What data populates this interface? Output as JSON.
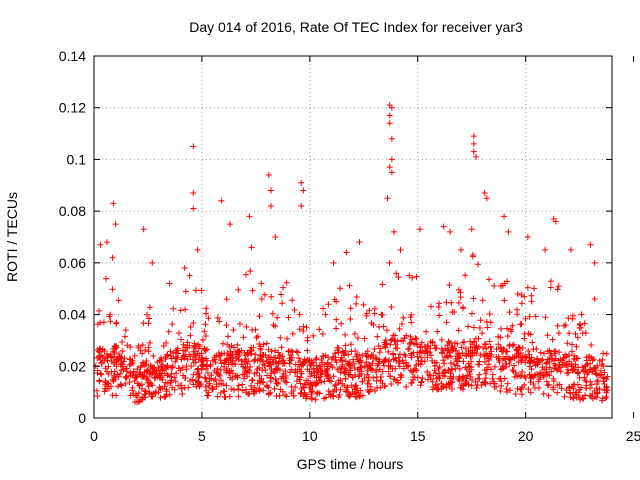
{
  "chart_data": {
    "type": "scatter",
    "title": "Day 014 of 2016, Rate Of TEC Index for receiver yar3",
    "xlabel": "GPS time / hours",
    "ylabel": "ROTI / TECUs",
    "xlim": [
      0,
      24
    ],
    "ylim": [
      0,
      0.14
    ],
    "x_ticks": [
      0,
      5,
      10,
      15,
      20,
      25
    ],
    "x_tick_labels": [
      "0",
      "5",
      "10",
      "15",
      "20",
      "25"
    ],
    "y_ticks": [
      0,
      0.02,
      0.04,
      0.06,
      0.08,
      0.1,
      0.12,
      0.14
    ],
    "y_tick_labels": [
      "0",
      "0.02",
      "0.04",
      "0.06",
      "0.08",
      "0.1",
      "0.12",
      "0.14"
    ],
    "grid": true,
    "marker": "+",
    "series": [
      {
        "name": "ROTI",
        "color": "#ff0000",
        "points": [
          [
            0.3,
            0.067
          ],
          [
            0.6,
            0.068
          ],
          [
            0.9,
            0.083
          ],
          [
            1.0,
            0.075
          ],
          [
            2.3,
            0.073
          ],
          [
            2.7,
            0.06
          ],
          [
            3.5,
            0.052
          ],
          [
            4.2,
            0.058
          ],
          [
            4.6,
            0.105
          ],
          [
            4.6,
            0.087
          ],
          [
            4.6,
            0.081
          ],
          [
            4.8,
            0.065
          ],
          [
            5.9,
            0.084
          ],
          [
            6.3,
            0.075
          ],
          [
            7.2,
            0.078
          ],
          [
            7.3,
            0.066
          ],
          [
            8.1,
            0.094
          ],
          [
            8.2,
            0.088
          ],
          [
            8.2,
            0.082
          ],
          [
            8.4,
            0.07
          ],
          [
            9.6,
            0.091
          ],
          [
            9.7,
            0.088
          ],
          [
            9.6,
            0.082
          ],
          [
            11.1,
            0.06
          ],
          [
            11.7,
            0.064
          ],
          [
            12.3,
            0.068
          ],
          [
            13.7,
            0.121
          ],
          [
            13.8,
            0.12
          ],
          [
            13.7,
            0.117
          ],
          [
            13.7,
            0.114
          ],
          [
            13.8,
            0.108
          ],
          [
            13.8,
            0.1
          ],
          [
            13.7,
            0.097
          ],
          [
            13.8,
            0.095
          ],
          [
            13.6,
            0.085
          ],
          [
            13.9,
            0.072
          ],
          [
            14.2,
            0.065
          ],
          [
            15.1,
            0.073
          ],
          [
            16.2,
            0.074
          ],
          [
            16.5,
            0.072
          ],
          [
            17.0,
            0.065
          ],
          [
            17.5,
            0.073
          ],
          [
            17.6,
            0.109
          ],
          [
            17.6,
            0.106
          ],
          [
            17.6,
            0.103
          ],
          [
            17.7,
            0.101
          ],
          [
            18.1,
            0.087
          ],
          [
            18.2,
            0.085
          ],
          [
            19.0,
            0.078
          ],
          [
            19.2,
            0.072
          ],
          [
            20.1,
            0.07
          ],
          [
            20.9,
            0.065
          ],
          [
            21.3,
            0.077
          ],
          [
            21.4,
            0.076
          ],
          [
            22.1,
            0.065
          ],
          [
            23.0,
            0.067
          ],
          [
            23.2,
            0.06
          ],
          [
            23.2,
            0.046
          ]
        ]
      }
    ],
    "dense_band": [
      [
        0,
        0.011,
        0.02,
        0.05
      ],
      [
        0.5,
        0.012,
        0.022,
        0.058
      ],
      [
        1.0,
        0.012,
        0.023,
        0.065
      ],
      [
        1.5,
        0.011,
        0.018,
        0.04
      ],
      [
        2.0,
        0.01,
        0.015,
        0.03
      ],
      [
        2.5,
        0.011,
        0.017,
        0.046
      ],
      [
        3.0,
        0.011,
        0.016,
        0.035
      ],
      [
        3.5,
        0.012,
        0.02,
        0.047
      ],
      [
        4.0,
        0.013,
        0.022,
        0.05
      ],
      [
        4.5,
        0.014,
        0.024,
        0.062
      ],
      [
        5.0,
        0.013,
        0.022,
        0.05
      ],
      [
        5.5,
        0.012,
        0.02,
        0.045
      ],
      [
        6.0,
        0.012,
        0.021,
        0.058
      ],
      [
        6.5,
        0.012,
        0.02,
        0.05
      ],
      [
        7.0,
        0.012,
        0.021,
        0.055
      ],
      [
        7.5,
        0.013,
        0.023,
        0.062
      ],
      [
        8.0,
        0.013,
        0.022,
        0.06
      ],
      [
        8.5,
        0.012,
        0.02,
        0.05
      ],
      [
        9.0,
        0.012,
        0.021,
        0.055
      ],
      [
        9.5,
        0.012,
        0.02,
        0.048
      ],
      [
        10.0,
        0.011,
        0.017,
        0.04
      ],
      [
        10.5,
        0.011,
        0.018,
        0.045
      ],
      [
        11.0,
        0.012,
        0.019,
        0.05
      ],
      [
        11.5,
        0.012,
        0.02,
        0.052
      ],
      [
        12.0,
        0.012,
        0.02,
        0.055
      ],
      [
        12.5,
        0.012,
        0.019,
        0.045
      ],
      [
        13.0,
        0.013,
        0.022,
        0.05
      ],
      [
        13.5,
        0.015,
        0.025,
        0.06
      ],
      [
        14.0,
        0.016,
        0.027,
        0.062
      ],
      [
        14.5,
        0.016,
        0.026,
        0.058
      ],
      [
        15.0,
        0.015,
        0.025,
        0.055
      ],
      [
        15.5,
        0.015,
        0.024,
        0.05
      ],
      [
        16.0,
        0.015,
        0.024,
        0.055
      ],
      [
        16.5,
        0.014,
        0.023,
        0.055
      ],
      [
        17.0,
        0.015,
        0.024,
        0.06
      ],
      [
        17.5,
        0.015,
        0.025,
        0.065
      ],
      [
        18.0,
        0.015,
        0.025,
        0.06
      ],
      [
        18.5,
        0.014,
        0.023,
        0.052
      ],
      [
        19.0,
        0.014,
        0.023,
        0.058
      ],
      [
        19.5,
        0.013,
        0.022,
        0.05
      ],
      [
        20.0,
        0.013,
        0.021,
        0.052
      ],
      [
        20.5,
        0.013,
        0.021,
        0.05
      ],
      [
        21.0,
        0.012,
        0.021,
        0.058
      ],
      [
        21.5,
        0.012,
        0.02,
        0.055
      ],
      [
        22.0,
        0.012,
        0.019,
        0.045
      ],
      [
        22.5,
        0.011,
        0.018,
        0.04
      ],
      [
        23.0,
        0.011,
        0.018,
        0.045
      ],
      [
        23.5,
        0.01,
        0.016,
        0.03
      ],
      [
        23.8,
        0.01,
        0.014,
        0.025
      ]
    ],
    "dense_band_columns": [
      "hour",
      "floor",
      "median",
      "upper"
    ]
  }
}
